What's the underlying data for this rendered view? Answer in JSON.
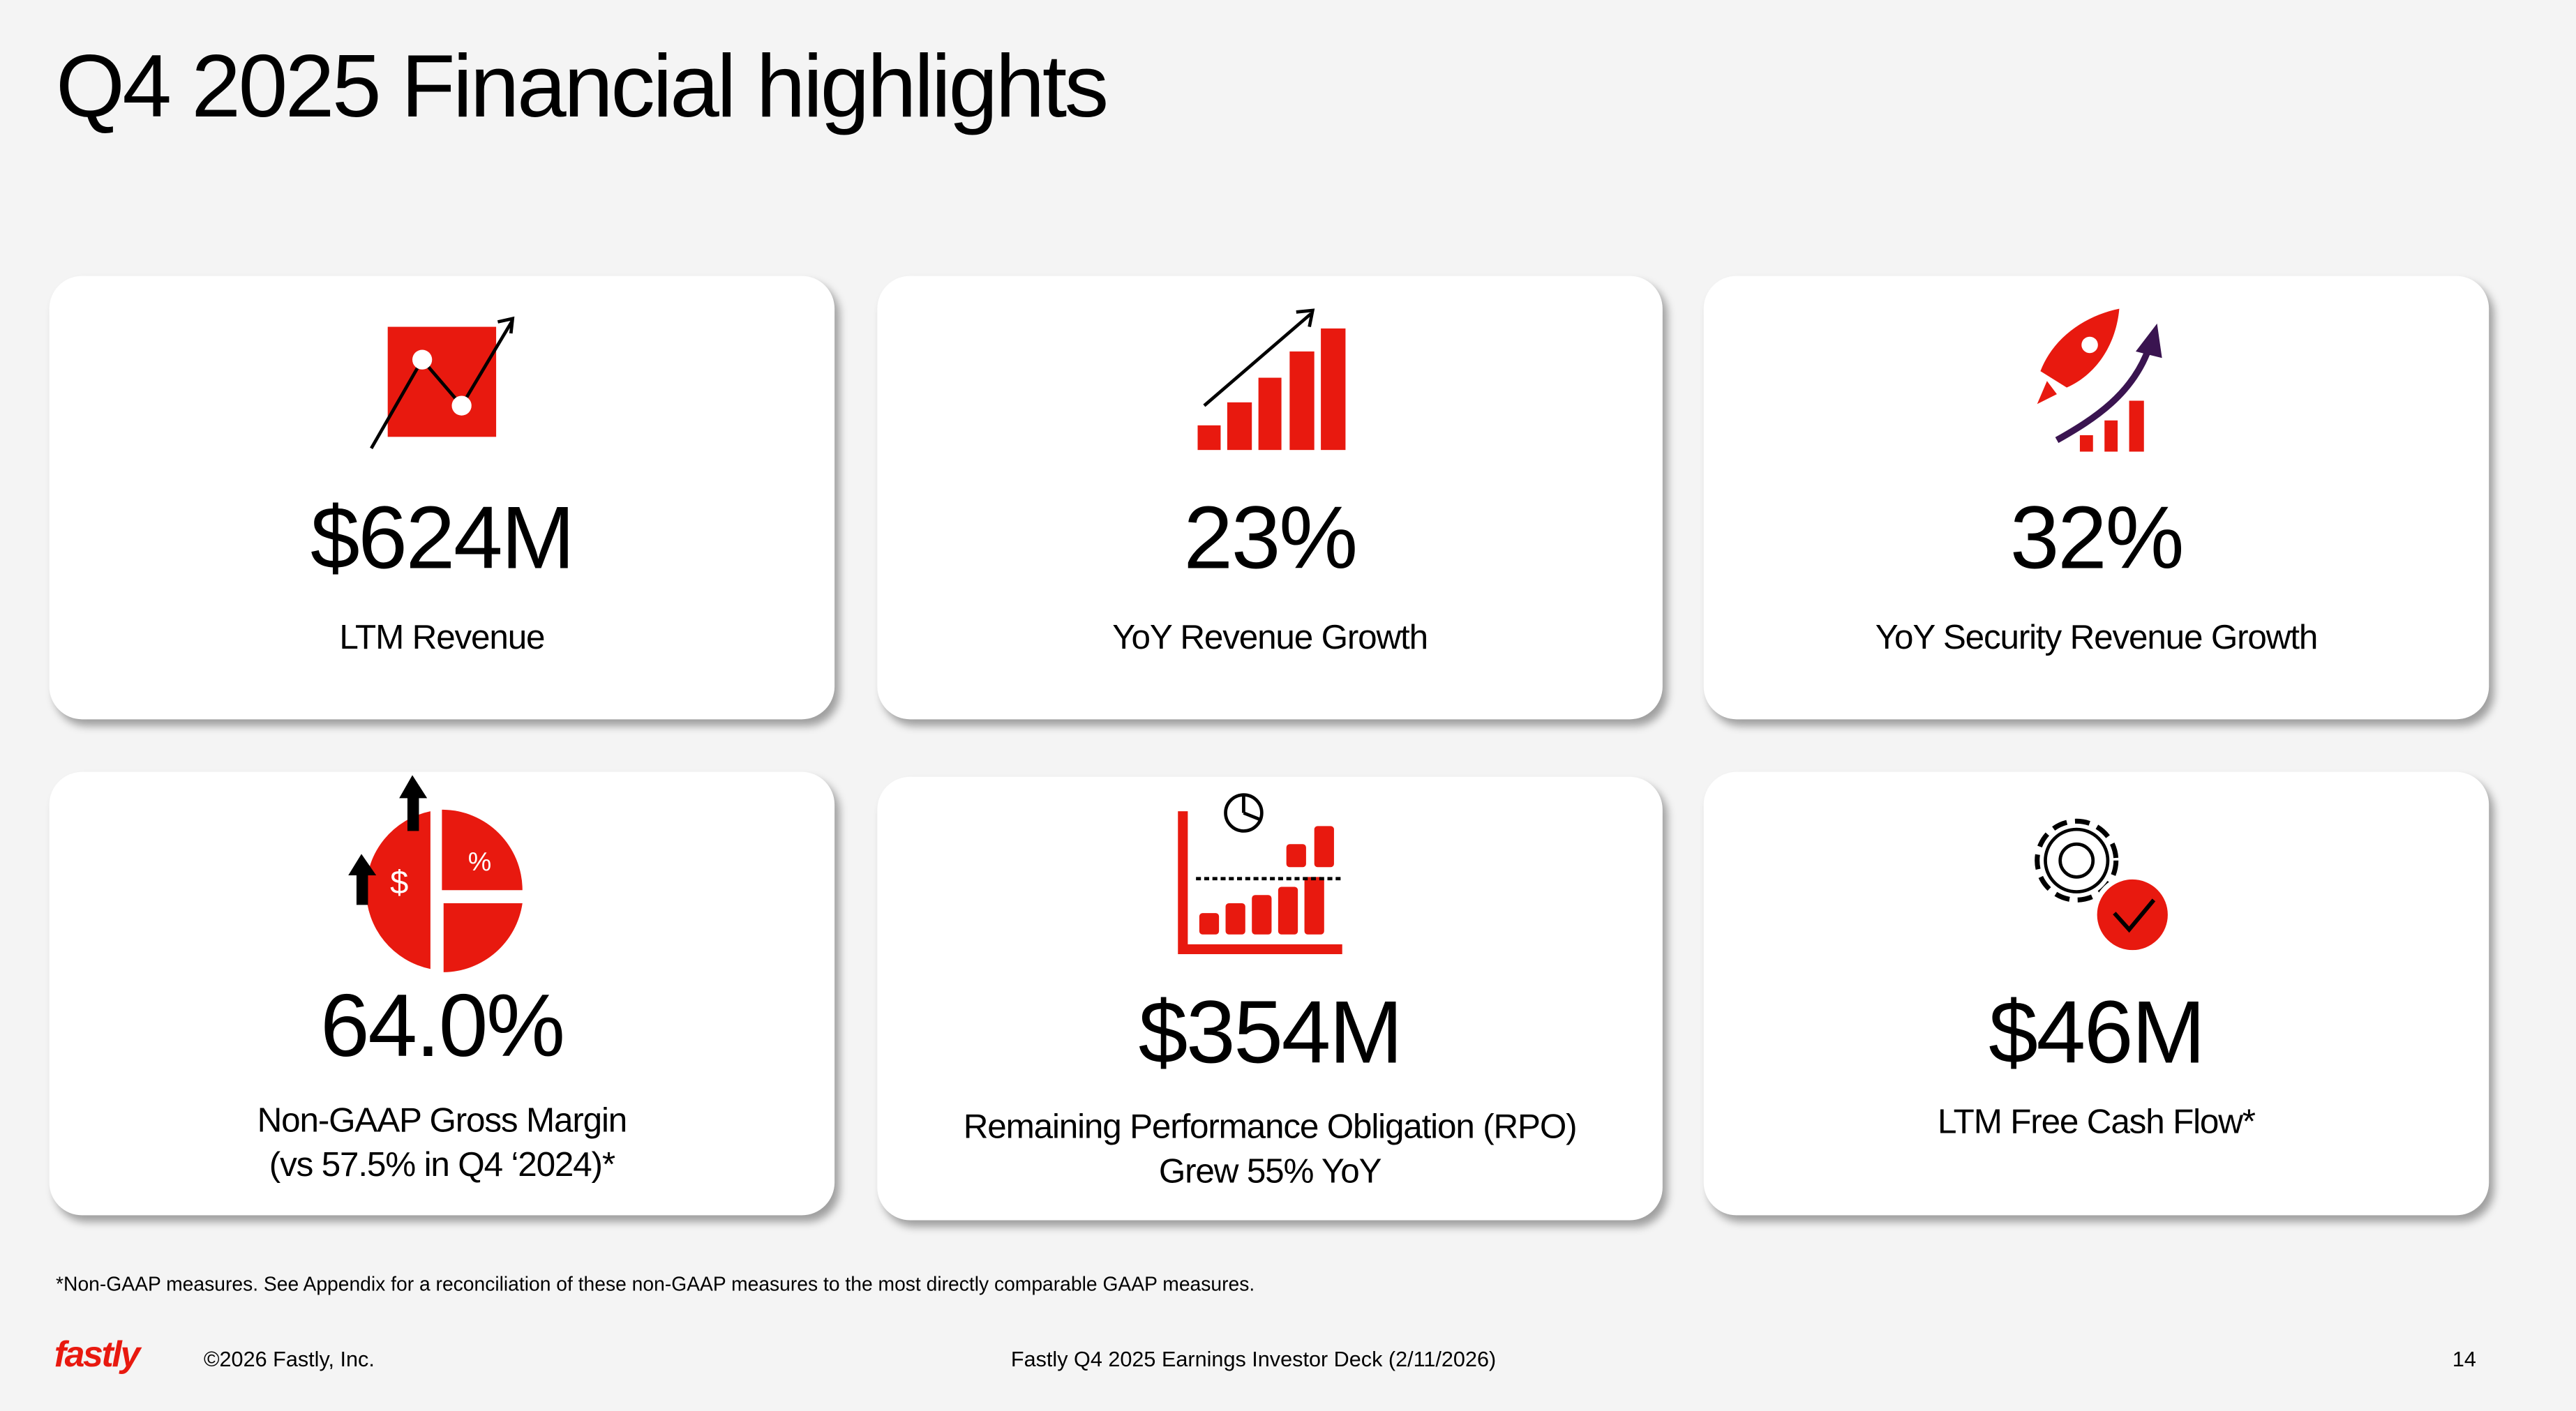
{
  "header": {
    "title": "Q4 2025 Financial highlights"
  },
  "cards": [
    {
      "value": "$624M",
      "label_lines": [
        "LTM Revenue"
      ]
    },
    {
      "value": "23%",
      "label_lines": [
        "YoY Revenue Growth"
      ]
    },
    {
      "value": "32%",
      "label_lines": [
        "YoY Security Revenue Growth"
      ]
    },
    {
      "value": "64.0%",
      "label_lines": [
        "Non-GAAP Gross Margin",
        "(vs 57.5% in Q4 ‘2024)*"
      ]
    },
    {
      "value": "$354M",
      "label_lines": [
        "Remaining Performance Obligation (RPO)",
        "Grew 55% YoY"
      ]
    },
    {
      "value": "$46M",
      "label_lines": [
        "LTM Free Cash Flow*"
      ]
    }
  ],
  "footnote": "*Non-GAAP measures. See Appendix for a reconciliation of these non-GAAP measures to the most directly comparable GAAP measures.",
  "footer": {
    "logo": "fastly",
    "copyright": "©2026 Fastly, Inc.",
    "deck": "Fastly Q4 2025 Earnings Investor Deck (2/11/2026)",
    "page": "14"
  }
}
